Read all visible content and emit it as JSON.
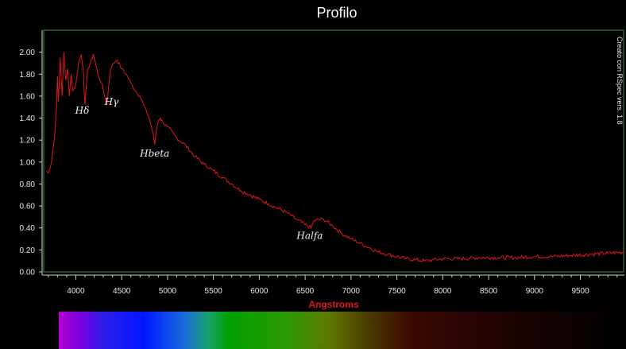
{
  "chart_data": {
    "type": "line",
    "title": "Profilo",
    "xlabel": "Angstroms",
    "ylabel": "",
    "xlim": [
      3650,
      9980
    ],
    "ylim": [
      0,
      2.2
    ],
    "x_ticks": [
      4000,
      4500,
      5000,
      5500,
      6000,
      6500,
      7000,
      7500,
      8000,
      8500,
      9000,
      9500
    ],
    "y_ticks": [
      "0.00",
      "0.20",
      "0.40",
      "0.60",
      "0.80",
      "1.00",
      "1.20",
      "1.40",
      "1.60",
      "1.80",
      "2.00"
    ],
    "credit": "Creato con RSpec vers. 1.8",
    "grid": false,
    "series": [
      {
        "color": "#e0141e",
        "x": [
          3680,
          3700,
          3730,
          3750,
          3770,
          3790,
          3800,
          3810,
          3830,
          3850,
          3870,
          3890,
          3910,
          3930,
          3950,
          3970,
          4000,
          4030,
          4060,
          4080,
          4100,
          4130,
          4160,
          4190,
          4210,
          4240,
          4280,
          4320,
          4340,
          4360,
          4380,
          4410,
          4450,
          4500,
          4550,
          4600,
          4650,
          4700,
          4750,
          4800,
          4830,
          4850,
          4861,
          4880,
          4900,
          4920,
          4950,
          5000,
          5100,
          5200,
          5300,
          5400,
          5500,
          5600,
          5700,
          5800,
          5900,
          6000,
          6100,
          6200,
          6300,
          6400,
          6500,
          6563,
          6600,
          6700,
          6800,
          6900,
          7000,
          7100,
          7200,
          7300,
          7400,
          7500,
          7600,
          7700,
          7800,
          7900,
          8000,
          8200,
          8400,
          8600,
          8800,
          9000,
          9200,
          9400,
          9600,
          9800,
          9980
        ],
        "y": [
          0.92,
          0.9,
          0.98,
          1.1,
          1.25,
          1.5,
          1.78,
          1.55,
          1.95,
          1.6,
          2.0,
          1.75,
          1.85,
          1.6,
          1.8,
          1.65,
          1.7,
          1.9,
          1.98,
          1.85,
          1.52,
          1.85,
          1.9,
          1.98,
          1.92,
          1.8,
          1.72,
          1.58,
          1.52,
          1.7,
          1.85,
          1.9,
          1.93,
          1.85,
          1.8,
          1.72,
          1.65,
          1.6,
          1.5,
          1.4,
          1.3,
          1.22,
          1.16,
          1.3,
          1.38,
          1.4,
          1.36,
          1.32,
          1.22,
          1.15,
          1.05,
          0.98,
          0.92,
          0.86,
          0.8,
          0.74,
          0.7,
          0.66,
          0.62,
          0.58,
          0.54,
          0.48,
          0.43,
          0.4,
          0.47,
          0.48,
          0.42,
          0.35,
          0.3,
          0.26,
          0.22,
          0.18,
          0.16,
          0.14,
          0.12,
          0.11,
          0.1,
          0.11,
          0.12,
          0.12,
          0.13,
          0.13,
          0.13,
          0.14,
          0.14,
          0.15,
          0.16,
          0.17,
          0.18
        ]
      }
    ],
    "annotations": [
      {
        "text": "Hδ",
        "x": 4070,
        "y": 1.44
      },
      {
        "text": "Hγ",
        "x": 4390,
        "y": 1.52
      },
      {
        "text": "Hbeta",
        "x": 4860,
        "y": 1.05
      },
      {
        "text": "Halfa",
        "x": 6550,
        "y": 0.3
      }
    ]
  },
  "colors": {
    "background": "#000000",
    "frame": "#3f8f3f",
    "axis": "#cfcfcf",
    "series": "#e0141e",
    "xlabel": "#e0141e"
  }
}
